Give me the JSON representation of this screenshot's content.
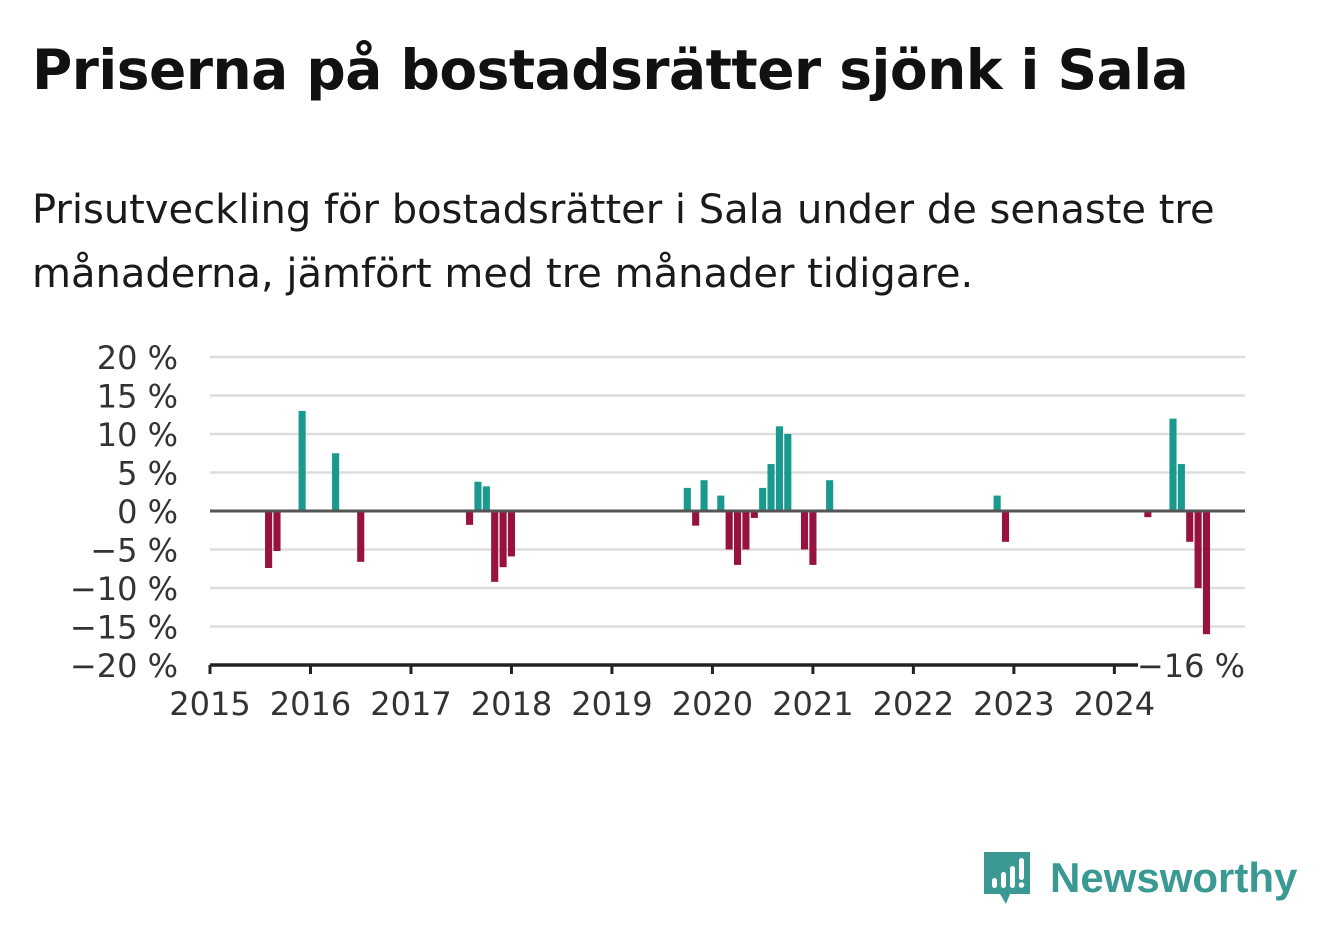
{
  "header": {
    "title": "Priserna på bostadsrätter sjönk i Sala",
    "subtitle": "Prisutveckling för bostadsrätter i Sala under de senaste tre månaderna, jämfört med tre månader tidigare."
  },
  "brand": {
    "name": "Newsworthy",
    "color": "#3a9a93",
    "icon": "newsworthy-logo-icon"
  },
  "colors": {
    "positive": "#1a9a8e",
    "negative": "#97123f",
    "grid": "#dddddd",
    "axis": "#555555"
  },
  "chart_data": {
    "type": "bar",
    "ylim": [
      -20,
      20
    ],
    "yticks": [
      20,
      15,
      10,
      5,
      0,
      -5,
      -10,
      -15,
      -20
    ],
    "ytick_labels": [
      "20 %",
      "15 %",
      "10 %",
      "5 %",
      "0 %",
      "−5 %",
      "−10 %",
      "−15 %",
      "−20 %"
    ],
    "xlim": [
      2015,
      2025.3
    ],
    "xticks": [
      2015,
      2016,
      2017,
      2018,
      2019,
      2020,
      2021,
      2022,
      2023,
      2024
    ],
    "xtick_labels": [
      "2015",
      "2016",
      "2017",
      "2018",
      "2019",
      "2020",
      "2021",
      "2022",
      "2023",
      "2024"
    ],
    "grid": true,
    "last_value_label": "−16 %",
    "points": [
      {
        "date": "2015-08",
        "value": -7.4
      },
      {
        "date": "2015-09",
        "value": -5.2
      },
      {
        "date": "2015-12",
        "value": 13.0
      },
      {
        "date": "2016-04",
        "value": 7.5
      },
      {
        "date": "2016-07",
        "value": -6.6
      },
      {
        "date": "2017-08",
        "value": -1.8
      },
      {
        "date": "2017-09",
        "value": 3.8
      },
      {
        "date": "2017-10",
        "value": 3.2
      },
      {
        "date": "2017-11",
        "value": -9.2
      },
      {
        "date": "2017-12",
        "value": -7.3
      },
      {
        "date": "2018-01",
        "value": -5.9
      },
      {
        "date": "2019-10",
        "value": 3.0
      },
      {
        "date": "2019-11",
        "value": -1.9
      },
      {
        "date": "2019-12",
        "value": 4.0
      },
      {
        "date": "2020-02",
        "value": 2.0
      },
      {
        "date": "2020-03",
        "value": -5.0
      },
      {
        "date": "2020-04",
        "value": -7.0
      },
      {
        "date": "2020-05",
        "value": -5.0
      },
      {
        "date": "2020-06",
        "value": -0.9
      },
      {
        "date": "2020-07",
        "value": 3.0
      },
      {
        "date": "2020-08",
        "value": 6.1
      },
      {
        "date": "2020-09",
        "value": 11.0
      },
      {
        "date": "2020-10",
        "value": 10.0
      },
      {
        "date": "2020-12",
        "value": -5.0
      },
      {
        "date": "2021-01",
        "value": -7.0
      },
      {
        "date": "2021-03",
        "value": 4.0
      },
      {
        "date": "2022-11",
        "value": 2.0
      },
      {
        "date": "2022-12",
        "value": -4.0
      },
      {
        "date": "2024-05",
        "value": -0.8
      },
      {
        "date": "2024-08",
        "value": 12.0
      },
      {
        "date": "2024-09",
        "value": 6.1
      },
      {
        "date": "2024-10",
        "value": -4.0
      },
      {
        "date": "2024-11",
        "value": -10.0
      },
      {
        "date": "2024-12",
        "value": -16.0
      }
    ]
  }
}
